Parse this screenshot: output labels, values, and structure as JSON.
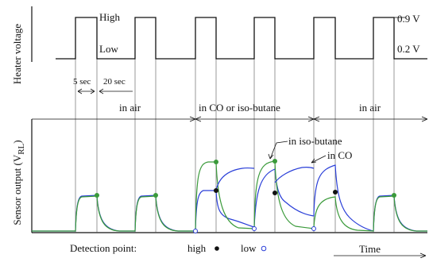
{
  "heater": {
    "ylabel": "Heater voltage",
    "high_label": "High",
    "low_label": "Low",
    "high_value": "0.9 V",
    "low_value": "0.2 V",
    "high_time": "5 sec",
    "low_time": "20 sec"
  },
  "phases": {
    "air1": "in air",
    "gas": "in CO or iso-butane",
    "air2": "in air"
  },
  "sensor": {
    "ylabel_main": "Sensor output (V",
    "ylabel_sub": "RL",
    "ylabel_end": ")",
    "isobutane_label": "in iso-butane",
    "co_label": "in CO"
  },
  "footer": {
    "detection_label": "Detection point:",
    "high_label": "high",
    "low_label": "low",
    "time_label": "Time"
  },
  "colors": {
    "co_trace": "#2a3fd8",
    "isobutane_trace": "#3a9a3a"
  }
}
